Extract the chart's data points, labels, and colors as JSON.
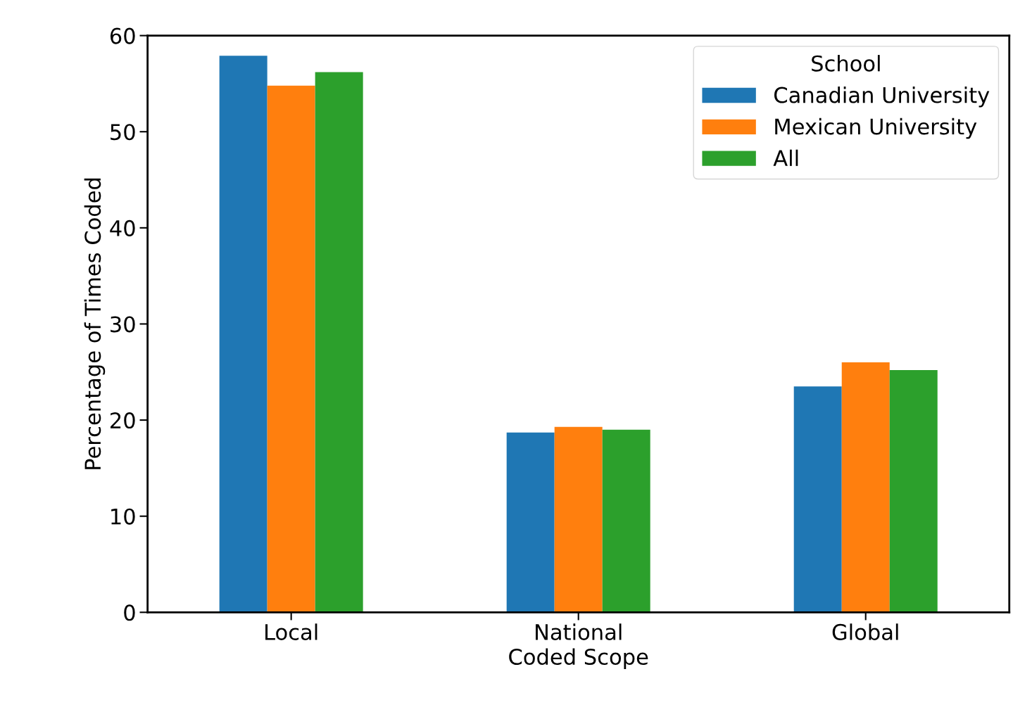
{
  "chart_data": {
    "type": "bar",
    "xlabel": "Coded Scope",
    "ylabel": "Percentage of Times Coded",
    "legend_title": "School",
    "categories": [
      "Local",
      "National",
      "Global"
    ],
    "series": [
      {
        "name": "Canadian University",
        "color": "#1f77b4",
        "values": [
          57.9,
          18.7,
          23.5
        ]
      },
      {
        "name": "Mexican University",
        "color": "#ff7f0e",
        "values": [
          54.8,
          19.3,
          26.0
        ]
      },
      {
        "name": "All",
        "color": "#2ca02c",
        "values": [
          56.2,
          19.0,
          25.2
        ]
      }
    ],
    "ylim": [
      0,
      60
    ],
    "yticks": [
      0,
      10,
      20,
      30,
      40,
      50,
      60
    ],
    "grid": false,
    "legend": "top right"
  }
}
